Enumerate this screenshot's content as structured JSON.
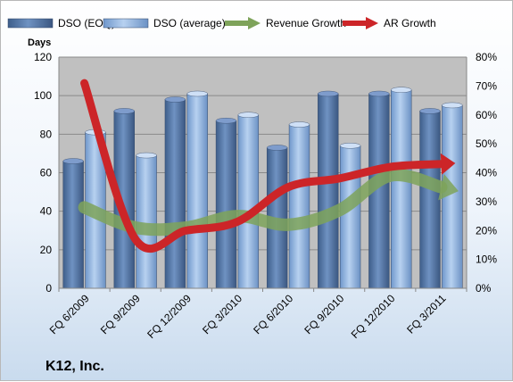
{
  "chart_data": {
    "type": "bar",
    "title": "",
    "company": "K12, Inc.",
    "ylabel": "Days",
    "y2label": "",
    "ylim": [
      0,
      120
    ],
    "y_ticks": [
      "0",
      "20",
      "40",
      "60",
      "80",
      "100",
      "120"
    ],
    "y2lim": [
      0,
      80
    ],
    "y2_ticks": [
      "0%",
      "10%",
      "20%",
      "30%",
      "40%",
      "50%",
      "60%",
      "70%",
      "80%"
    ],
    "categories": [
      "FQ 6/2009",
      "FQ 9/2009",
      "FQ 12/2009",
      "FQ 3/2010",
      "FQ 6/2010",
      "FQ 9/2010",
      "FQ 12/2010",
      "FQ 3/2011"
    ],
    "grid": true,
    "legend_position": "top",
    "series": [
      {
        "name": "DSO (EOQ)",
        "type": "bar",
        "axis": "left",
        "color": "#4a6a96",
        "values": [
          66,
          92,
          98,
          87,
          73,
          101,
          101,
          92
        ]
      },
      {
        "name": "DSO (average)",
        "type": "bar",
        "axis": "left",
        "color": "#8fb2e0",
        "values": [
          81,
          69,
          101,
          90,
          85,
          74,
          103,
          95
        ]
      },
      {
        "name": "Revenue Growth",
        "type": "line-arrow",
        "axis": "right",
        "unit": "%",
        "color": "#7ea35a",
        "values": [
          28,
          21,
          21,
          25,
          22,
          27,
          39,
          35
        ]
      },
      {
        "name": "AR Growth",
        "type": "line-arrow",
        "axis": "right",
        "unit": "%",
        "color": "#cc2528",
        "values": [
          71,
          17,
          20,
          23,
          35,
          38,
          42,
          43
        ]
      }
    ]
  }
}
